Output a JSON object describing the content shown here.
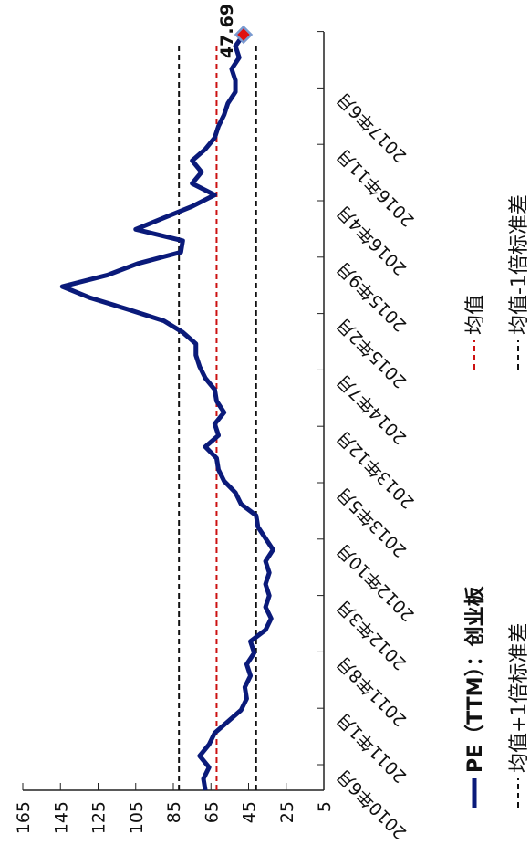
{
  "chart_data": {
    "type": "line",
    "x_tick_labels": [
      "2010年6月",
      "2011年1月",
      "2011年8月",
      "2012年3月",
      "2012年10月",
      "2013年5月",
      "2013年12月",
      "2014年7月",
      "2015年2月",
      "2015年9月",
      "2016年4月",
      "2016年11月",
      "2017年6月",
      null
    ],
    "series": [
      {
        "name": "PE（TTM）：创业板",
        "color": "#0a1a7a",
        "values": [
          68,
          69,
          66,
          71,
          66,
          63,
          56,
          49,
          46,
          47,
          44,
          46,
          42,
          44,
          36,
          33,
          36,
          34,
          36,
          34,
          36,
          32,
          36,
          40,
          41,
          49,
          52,
          58,
          61,
          62,
          68,
          61,
          63,
          58,
          62,
          63,
          68,
          71,
          73,
          73,
          80,
          90,
          109,
          129,
          144,
          120,
          104,
          81,
          80,
          105,
          90,
          75,
          63,
          75,
          70,
          75,
          68,
          63,
          61,
          58,
          56,
          52,
          52,
          54,
          50,
          52,
          47.69
        ],
        "last_label": "47.69"
      }
    ],
    "reference_lines": [
      {
        "name": "均值",
        "color": "#cc1111",
        "value": 62
      },
      {
        "name": "均值+1倍标准差",
        "color": "#111111",
        "value": 82
      },
      {
        "name": "均值-1倍标准差",
        "color": "#111111",
        "value": 41
      }
    ],
    "ylim": [
      5,
      165
    ],
    "yticks": [
      5,
      25,
      45,
      65,
      85,
      105,
      125,
      145,
      165
    ],
    "grid": false
  }
}
